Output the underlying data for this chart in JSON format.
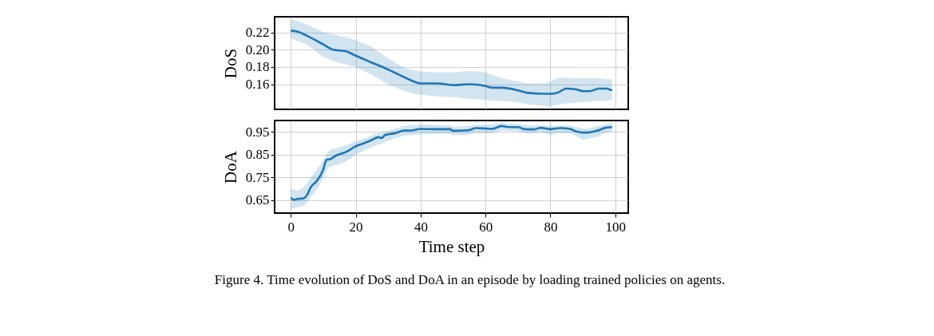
{
  "chart_data": [
    {
      "type": "line",
      "ylabel": "DoS",
      "xlim": [
        -5,
        104
      ],
      "xticks": [
        0,
        20,
        40,
        60,
        80,
        100
      ],
      "ylim": [
        0.131,
        0.238
      ],
      "yticks": [
        0.16,
        0.18,
        {
          "value": 0.2,
          "label": "0.20"
        },
        0.22
      ],
      "grid": true,
      "tick_labels": "y",
      "series": [
        {
          "color": "#1f77b4",
          "x": [
            0,
            2,
            5,
            10,
            13,
            17,
            20,
            25,
            30,
            35,
            38,
            40,
            45,
            50,
            55,
            60,
            62,
            65,
            70,
            73,
            78,
            80,
            82,
            85,
            88,
            90,
            92,
            95,
            97,
            99
          ],
          "values": [
            0.222,
            0.221,
            0.216,
            0.206,
            0.2,
            0.198,
            0.193,
            0.185,
            0.177,
            0.168,
            0.163,
            0.161,
            0.161,
            0.159,
            0.16,
            0.158,
            0.156,
            0.156,
            0.153,
            0.15,
            0.149,
            0.149,
            0.15,
            0.155,
            0.154,
            0.152,
            0.152,
            0.155,
            0.155,
            0.153
          ],
          "upper": [
            0.235,
            0.233,
            0.229,
            0.2205,
            0.218,
            0.214,
            0.211,
            0.203,
            0.19,
            0.179,
            0.176,
            0.1745,
            0.174,
            0.174,
            0.1755,
            0.174,
            0.171,
            0.167,
            0.163,
            0.161,
            0.161,
            0.1625,
            0.167,
            0.168,
            0.167,
            0.167,
            0.167,
            0.167,
            0.166,
            0.1655
          ],
          "lower": [
            0.213,
            0.21,
            0.206,
            0.1915,
            0.187,
            0.183,
            0.18,
            0.171,
            0.16,
            0.152,
            0.149,
            0.148,
            0.146,
            0.145,
            0.143,
            0.142,
            0.141,
            0.141,
            0.139,
            0.137,
            0.135,
            0.135,
            0.136,
            0.138,
            0.139,
            0.139,
            0.14,
            0.141,
            0.141,
            0.1415
          ]
        }
      ]
    },
    {
      "type": "line",
      "ylabel": "DoA",
      "xlabel": "Time step",
      "xlim": [
        -5,
        104
      ],
      "xticks": [
        0,
        20,
        40,
        60,
        80,
        100
      ],
      "ylim": [
        0.593,
        0.999
      ],
      "yticks": [
        0.65,
        0.75,
        0.85,
        0.95
      ],
      "grid": true,
      "annotations": [
        "Figure 4. Time evolution of DoS and DoA in an episode by loading trained policies on agents."
      ],
      "series": [
        {
          "color": "#1f77b4",
          "x": [
            0,
            1,
            2,
            4,
            5,
            6,
            8,
            10,
            11,
            12,
            14,
            17,
            20,
            23,
            25,
            27,
            28,
            29,
            32,
            35,
            37,
            40,
            45,
            49,
            50,
            53,
            55,
            57,
            60,
            62,
            65,
            67,
            70,
            72,
            75,
            77,
            80,
            83,
            86,
            88,
            90,
            92,
            95,
            97,
            99
          ],
          "values": [
            0.66,
            0.651,
            0.655,
            0.658,
            0.672,
            0.703,
            0.734,
            0.784,
            0.827,
            0.829,
            0.846,
            0.861,
            0.886,
            0.902,
            0.914,
            0.926,
            0.922,
            0.935,
            0.943,
            0.955,
            0.955,
            0.962,
            0.961,
            0.961,
            0.954,
            0.955,
            0.957,
            0.966,
            0.964,
            0.962,
            0.975,
            0.97,
            0.97,
            0.961,
            0.96,
            0.967,
            0.961,
            0.966,
            0.962,
            0.951,
            0.946,
            0.947,
            0.957,
            0.967,
            0.97
          ],
          "upper": [
            0.7,
            0.695,
            0.69,
            0.707,
            0.725,
            0.747,
            0.784,
            0.827,
            0.85,
            0.871,
            0.878,
            0.89,
            0.908,
            0.922,
            0.933,
            0.945,
            0.945,
            0.95,
            0.962,
            0.976,
            0.978,
            0.982,
            0.98,
            0.978,
            0.972,
            0.974,
            0.976,
            0.98,
            0.98,
            0.982,
            0.988,
            0.985,
            0.983,
            0.98,
            0.976,
            0.978,
            0.976,
            0.977,
            0.976,
            0.97,
            0.964,
            0.966,
            0.976,
            0.982,
            0.985
          ],
          "lower": [
            0.615,
            0.612,
            0.62,
            0.623,
            0.64,
            0.66,
            0.697,
            0.747,
            0.777,
            0.797,
            0.803,
            0.82,
            0.849,
            0.87,
            0.883,
            0.895,
            0.895,
            0.905,
            0.92,
            0.933,
            0.935,
            0.939,
            0.94,
            0.94,
            0.934,
            0.935,
            0.937,
            0.945,
            0.943,
            0.943,
            0.955,
            0.953,
            0.952,
            0.943,
            0.942,
            0.948,
            0.935,
            0.945,
            0.943,
            0.93,
            0.914,
            0.92,
            0.93,
            0.945,
            0.951
          ]
        }
      ]
    }
  ]
}
